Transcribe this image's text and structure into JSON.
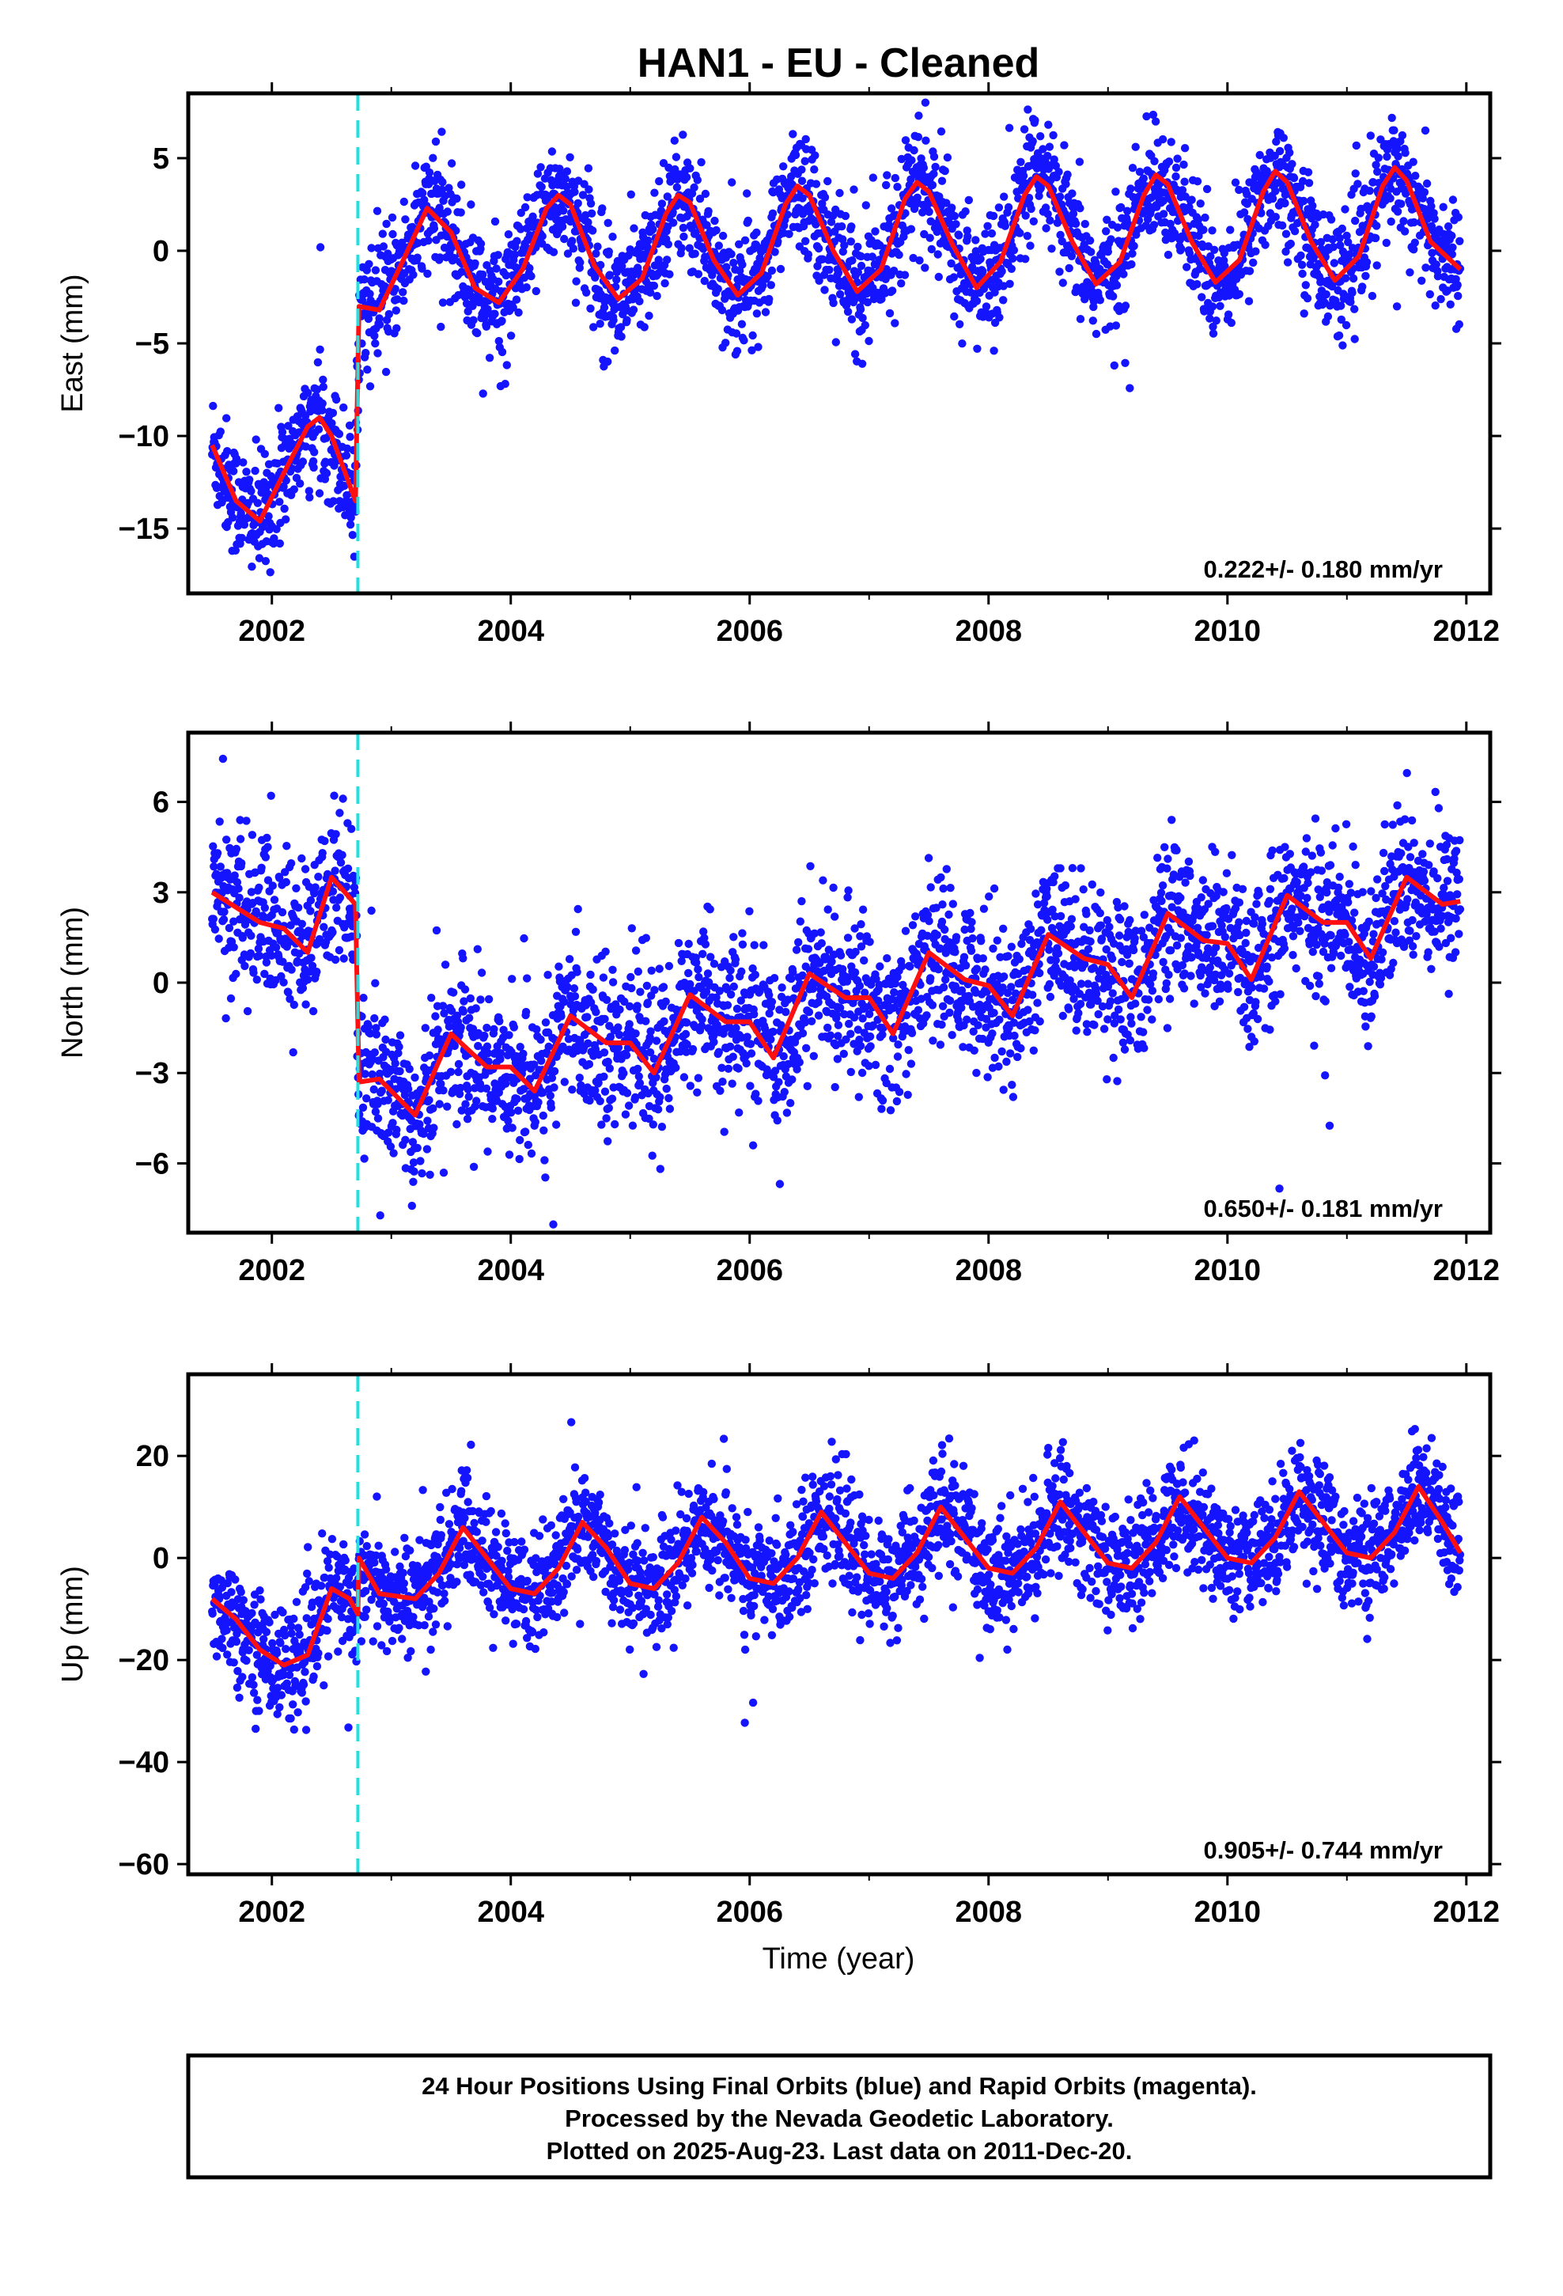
{
  "title": "HAN1  - EU - Cleaned",
  "xlabel": "Time (year)",
  "footer": [
    "24 Hour Positions Using Final Orbits (blue) and Rapid Orbits (magenta).",
    "Processed by the Nevada Geodetic Laboratory.",
    "Plotted on 2025-Aug-23. Last data on 2011-Dec-20."
  ],
  "colors": {
    "points": "#1414ff",
    "model": "#ff1010",
    "step": "#20e0e0"
  },
  "chart_data": [
    {
      "type": "scatter",
      "ylabel": "East (mm)",
      "xlim": [
        2001.3,
        2012.2
      ],
      "ylim": [
        -18.5,
        8.5
      ],
      "xticks": [
        2002,
        2004,
        2006,
        2008,
        2010,
        2012
      ],
      "yticks": [
        5,
        0,
        -5,
        -10,
        -15
      ],
      "step_marker_x": 2002.72,
      "rate_label": "0.222+/- 0.180 mm/yr",
      "series": [
        {
          "x": [
            2001.5,
            2001.7,
            2001.9,
            2002.1,
            2002.3,
            2002.4,
            2002.5,
            2002.7,
            2002.73,
            2002.9,
            2003.1,
            2003.3,
            2003.5,
            2003.7,
            2003.9,
            2004.1,
            2004.3,
            2004.4,
            2004.5,
            2004.7,
            2004.9,
            2005.1,
            2005.3,
            2005.4,
            2005.5,
            2005.7,
            2005.9,
            2006.1,
            2006.3,
            2006.4,
            2006.5,
            2006.7,
            2006.9,
            2007.1,
            2007.3,
            2007.4,
            2007.5,
            2007.7,
            2007.9,
            2008.1,
            2008.3,
            2008.4,
            2008.5,
            2008.7,
            2008.9,
            2009.1,
            2009.3,
            2009.4,
            2009.5,
            2009.7,
            2009.9,
            2010.1,
            2010.3,
            2010.4,
            2010.5,
            2010.7,
            2010.9,
            2011.1,
            2011.3,
            2011.4,
            2011.5,
            2011.7,
            2011.95
          ],
          "y": [
            -10.5,
            -13.5,
            -14.6,
            -12.0,
            -9.5,
            -9.0,
            -10.0,
            -13.5,
            -3.0,
            -3.2,
            -0.5,
            2.3,
            1.0,
            -2.0,
            -2.8,
            -1.0,
            2.3,
            3.0,
            2.5,
            -0.8,
            -2.6,
            -1.5,
            2.0,
            3.0,
            2.6,
            -0.5,
            -2.4,
            -1.2,
            2.5,
            3.5,
            3.0,
            0.0,
            -2.2,
            -1.0,
            2.8,
            3.7,
            3.2,
            0.3,
            -2.0,
            -0.6,
            3.0,
            4.0,
            3.5,
            0.5,
            -1.8,
            -0.6,
            3.0,
            4.1,
            3.6,
            0.5,
            -1.7,
            -0.5,
            3.2,
            4.3,
            3.7,
            0.5,
            -1.6,
            -0.3,
            3.5,
            4.5,
            3.8,
            0.5,
            -1.0
          ]
        }
      ]
    },
    {
      "type": "scatter",
      "ylabel": "North (mm)",
      "xlim": [
        2001.3,
        2012.2
      ],
      "ylim": [
        -8.3,
        8.3
      ],
      "xticks": [
        2002,
        2004,
        2006,
        2008,
        2010,
        2012
      ],
      "yticks": [
        6,
        3,
        0,
        -3,
        -6
      ],
      "step_marker_x": 2002.72,
      "rate_label": "0.650+/- 0.181 mm/yr",
      "series": [
        {
          "x": [
            2001.5,
            2001.7,
            2001.9,
            2002.1,
            2002.3,
            2002.5,
            2002.7,
            2002.73,
            2002.9,
            2003.2,
            2003.5,
            2003.8,
            2004.0,
            2004.2,
            2004.5,
            2004.8,
            2005.0,
            2005.2,
            2005.5,
            2005.8,
            2006.0,
            2006.2,
            2006.5,
            2006.8,
            2007.0,
            2007.2,
            2007.5,
            2007.8,
            2008.0,
            2008.2,
            2008.5,
            2008.8,
            2009.0,
            2009.2,
            2009.5,
            2009.8,
            2010.0,
            2010.2,
            2010.5,
            2010.8,
            2011.0,
            2011.2,
            2011.5,
            2011.8,
            2011.95
          ],
          "y": [
            3.0,
            2.5,
            2.0,
            1.8,
            1.0,
            3.5,
            2.6,
            -3.3,
            -3.2,
            -4.4,
            -1.7,
            -2.8,
            -2.8,
            -3.6,
            -1.1,
            -2.0,
            -2.0,
            -3.0,
            -0.4,
            -1.3,
            -1.3,
            -2.5,
            0.3,
            -0.5,
            -0.5,
            -1.7,
            1.0,
            0.1,
            -0.1,
            -1.1,
            1.6,
            0.8,
            0.6,
            -0.5,
            2.3,
            1.4,
            1.3,
            0.1,
            2.9,
            2.0,
            2.0,
            0.8,
            3.5,
            2.6,
            2.7
          ]
        }
      ]
    },
    {
      "type": "scatter",
      "ylabel": "Up (mm)",
      "xlabel": "Time (year)",
      "xlim": [
        2001.3,
        2012.2
      ],
      "ylim": [
        -62,
        36
      ],
      "xticks": [
        2002,
        2004,
        2006,
        2008,
        2010,
        2012
      ],
      "yticks": [
        20,
        0,
        -20,
        -40,
        -60
      ],
      "step_marker_x": 2002.72,
      "rate_label": "0.905+/- 0.744 mm/yr",
      "series": [
        {
          "x": [
            2001.5,
            2001.7,
            2001.9,
            2002.1,
            2002.3,
            2002.5,
            2002.65,
            2002.72,
            2002.73,
            2002.9,
            2003.2,
            2003.4,
            2003.6,
            2003.8,
            2004.0,
            2004.2,
            2004.4,
            2004.6,
            2004.8,
            2005.0,
            2005.2,
            2005.4,
            2005.6,
            2005.8,
            2006.0,
            2006.2,
            2006.4,
            2006.6,
            2006.8,
            2007.0,
            2007.2,
            2007.4,
            2007.6,
            2007.8,
            2008.0,
            2008.2,
            2008.4,
            2008.6,
            2008.8,
            2009.0,
            2009.2,
            2009.4,
            2009.6,
            2009.8,
            2010.0,
            2010.2,
            2010.4,
            2010.6,
            2010.8,
            2011.0,
            2011.2,
            2011.4,
            2011.6,
            2011.8,
            2011.95
          ],
          "y": [
            -8,
            -12,
            -18,
            -21,
            -19,
            -6,
            -8,
            -11,
            0,
            -7,
            -8,
            -3,
            6,
            0,
            -6,
            -7,
            -2,
            7,
            2,
            -5,
            -6,
            -1,
            8,
            3,
            -4,
            -5,
            0,
            9,
            3,
            -3,
            -4,
            1,
            10,
            4,
            -2,
            -3,
            2,
            11,
            5,
            -1,
            -2,
            3,
            12,
            6,
            0,
            -1,
            4,
            13,
            7,
            1,
            0,
            5,
            14,
            7,
            1
          ]
        }
      ]
    }
  ]
}
